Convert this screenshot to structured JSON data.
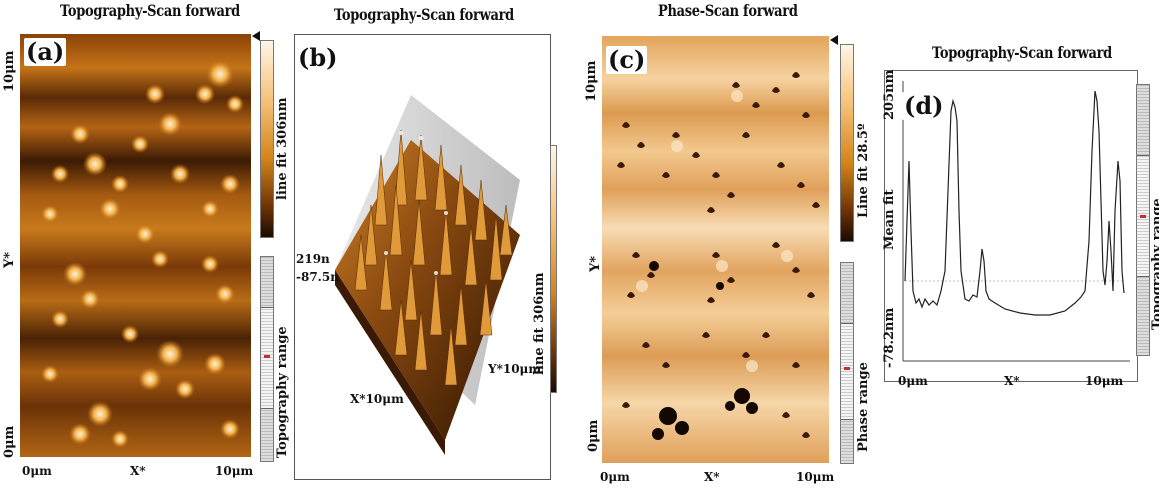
{
  "figure": {
    "panel_a": {
      "label": "(a)",
      "title": "Topography-Scan forward",
      "y_top": "10μm",
      "y_axis": "Y*",
      "y_bottom": "0μm",
      "x_left": "0μm",
      "x_axis": "X*",
      "x_right": "10μm",
      "colorbar_label": "line fit 306nm",
      "range_label": "Topography range"
    },
    "panel_b": {
      "label": "(b)",
      "title": "Topography-Scan forward",
      "z_top": "219n",
      "z_bottom": "-87.5n",
      "x_axis": "X*10μm",
      "y_axis": "Y*10μm",
      "colorbar_label": "line fit 306nm"
    },
    "panel_c": {
      "label": "(c)",
      "title": "Phase-Scan forward",
      "y_top": "10μm",
      "y_axis": "Y*",
      "y_bottom": "0μm",
      "x_left": "0μm",
      "x_axis": "X*",
      "x_right": "10μm",
      "colorbar_label": "Line fit 28.5º",
      "range_label": "Phase range"
    },
    "panel_d": {
      "label": "(d)",
      "title": "Topography-Scan forward",
      "y_top": "205nm",
      "y_axis": "Mean fit",
      "y_bottom": "-78.2nm",
      "x_left": "0μm",
      "x_axis": "X*",
      "x_right": "10μm",
      "range_label": "Topography range"
    },
    "colors": {
      "afm_dark": "#2a1203",
      "afm_mid": "#b0600e",
      "afm_light": "#fce4b8",
      "phase_bg": "#e8b070"
    }
  }
}
